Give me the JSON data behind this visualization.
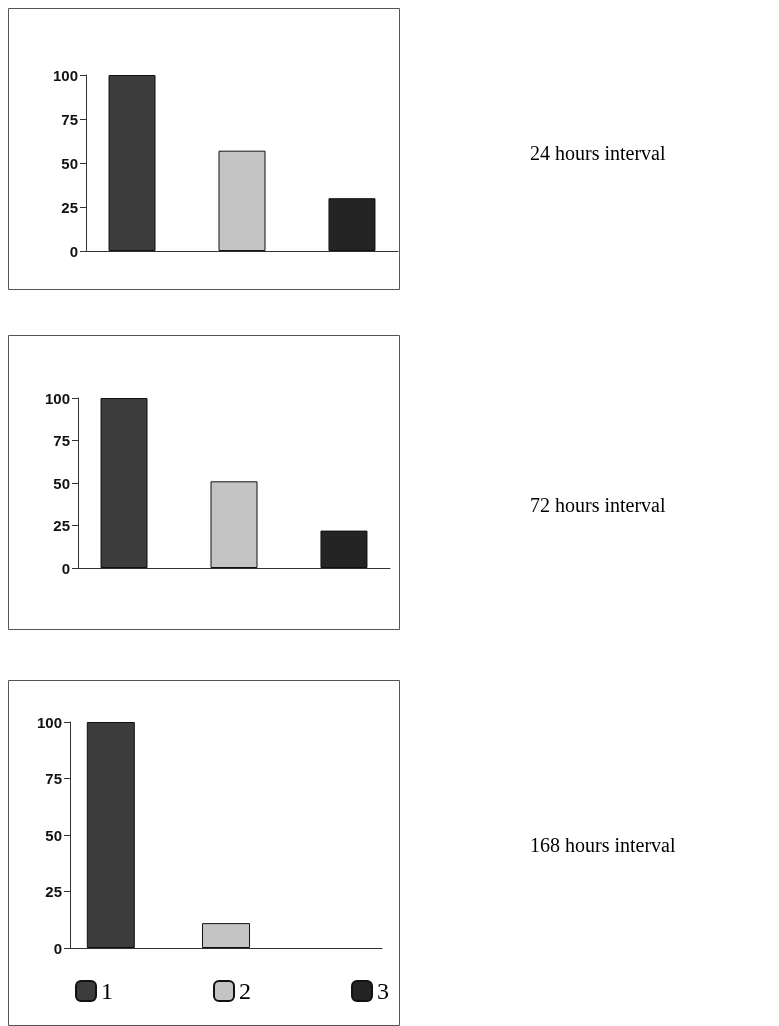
{
  "chart_data": [
    {
      "type": "bar",
      "annotations": [
        "24 hours interval"
      ],
      "categories": [
        null
      ],
      "series": [
        {
          "color": "#3c3c3c",
          "values": [
            100
          ]
        },
        {
          "color": "#c4c4c4",
          "values": [
            57
          ]
        },
        {
          "color": "#242424",
          "values": [
            30
          ]
        }
      ],
      "ylim": [
        0,
        100
      ],
      "yticks": [
        0,
        25,
        50,
        75,
        100
      ],
      "tick_labels": "y",
      "grid": false,
      "legend": false
    },
    {
      "type": "bar",
      "annotations": [
        "72 hours interval"
      ],
      "categories": [
        null
      ],
      "series": [
        {
          "color": "#3c3c3c",
          "values": [
            100
          ]
        },
        {
          "color": "#c4c4c4",
          "values": [
            51
          ]
        },
        {
          "color": "#242424",
          "values": [
            22
          ]
        }
      ],
      "ylim": [
        0,
        100
      ],
      "yticks": [
        0,
        25,
        50,
        75,
        100
      ],
      "tick_labels": "y",
      "grid": false,
      "legend": false
    },
    {
      "type": "bar",
      "annotations": [
        "168 hours interval"
      ],
      "categories": [
        null
      ],
      "series": [
        {
          "name": "1",
          "color": "#3c3c3c",
          "values": [
            100
          ]
        },
        {
          "name": "2",
          "color": "#c4c4c4",
          "values": [
            11
          ]
        },
        {
          "name": "3",
          "color": "#242424",
          "values": [
            null
          ]
        }
      ],
      "ylim": [
        0,
        100
      ],
      "yticks": [
        0,
        25,
        50,
        75,
        100
      ],
      "tick_labels": "y",
      "grid": false,
      "legend": "bottom"
    }
  ]
}
